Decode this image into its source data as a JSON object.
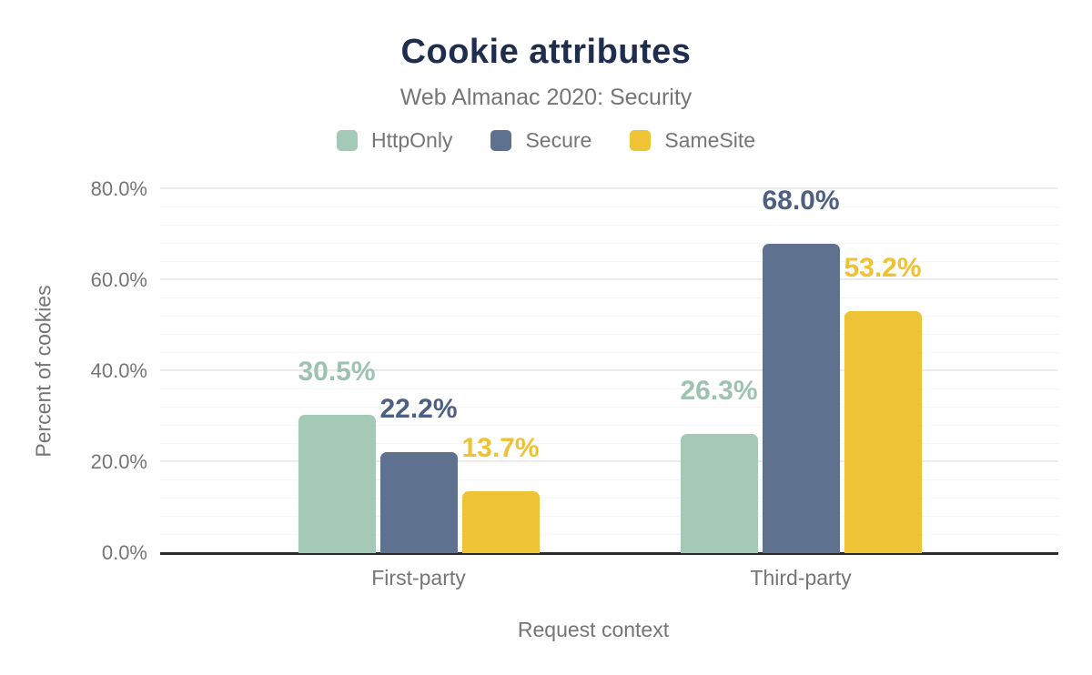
{
  "title": "Cookie attributes",
  "subtitle": "Web Almanac 2020: Security",
  "chart_data": {
    "type": "bar",
    "title": "Cookie attributes",
    "subtitle": "Web Almanac 2020: Security",
    "categories": [
      "First-party",
      "Third-party"
    ],
    "series": [
      {
        "name": "HttpOnly",
        "color": "#a5c9b7",
        "label_color": "#9dc3b0",
        "values": [
          30.5,
          26.3
        ]
      },
      {
        "name": "Secure",
        "color": "#5e718f",
        "label_color": "#4d5f83",
        "values": [
          22.2,
          68.0
        ]
      },
      {
        "name": "SameSite",
        "color": "#eec336",
        "label_color": "#f0c132",
        "values": [
          13.7,
          53.2
        ]
      }
    ],
    "xlabel": "Request context",
    "ylabel": "Percent of cookies",
    "ylim": [
      0,
      80
    ],
    "y_major_step": 20,
    "y_minor_step": 4,
    "y_tick_labels": [
      "0.0%",
      "20.0%",
      "40.0%",
      "60.0%",
      "80.0%"
    ],
    "data_labels": [
      [
        "30.5%",
        "26.3%"
      ],
      [
        "22.2%",
        "68.0%"
      ],
      [
        "13.7%",
        "53.2%"
      ]
    ],
    "legend_position": "top",
    "grid": true
  },
  "colors": {
    "title": "#1f2d4e",
    "muted_text": "#757575",
    "axis_line": "#2d2d2d",
    "gridline_minor": "#f5f5f5",
    "gridline_major": "#ebebeb",
    "background": "#ffffff"
  }
}
